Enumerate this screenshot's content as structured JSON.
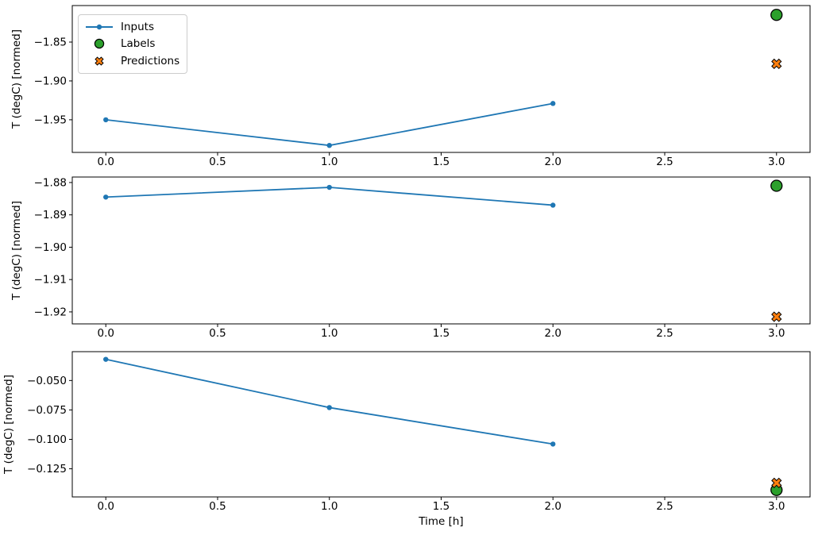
{
  "figure": {
    "background": "#ffffff"
  },
  "colors": {
    "inputs_line": "#1f77b4",
    "labels_marker": "#2ca02c",
    "predictions_marker": "#ff7f0e",
    "marker_edge": "#000000",
    "axis": "#000000",
    "tick_text": "#000000",
    "legend_border": "#cccccc"
  },
  "legend": {
    "position": "upper left",
    "entries": [
      {
        "label": "Inputs",
        "marker": "line-dot-icon",
        "color": "#1f77b4"
      },
      {
        "label": "Labels",
        "marker": "circle-icon",
        "color": "#2ca02c"
      },
      {
        "label": "Predictions",
        "marker": "x-cross-icon",
        "color": "#ff7f0e"
      }
    ]
  },
  "chart_data": {
    "type": "line",
    "title": "",
    "xlabel": "Time [h]",
    "xlim": [
      -0.15,
      3.15
    ],
    "x_ticks": [
      0.0,
      0.5,
      1.0,
      1.5,
      2.0,
      2.5,
      3.0
    ],
    "x_tick_labels": [
      "0.0",
      "0.5",
      "1.0",
      "1.5",
      "2.0",
      "2.5",
      "3.0"
    ],
    "grid": false,
    "subplots": [
      {
        "ylabel": "T (degC) [normed]",
        "ylim": [
          -1.992,
          -1.803
        ],
        "yticks": [
          -1.85,
          -1.9,
          -1.95
        ],
        "ytick_labels": [
          "−1.85",
          "−1.90",
          "−1.95"
        ],
        "series": [
          {
            "name": "Inputs",
            "type": "line+marker",
            "x": [
              0,
              1,
              2
            ],
            "y": [
              -1.95,
              -1.983,
              -1.929
            ]
          },
          {
            "name": "Labels",
            "type": "scatter-circle",
            "x": [
              3
            ],
            "y": [
              -1.815
            ]
          },
          {
            "name": "Predictions",
            "type": "scatter-x",
            "x": [
              3
            ],
            "y": [
              -1.878
            ]
          }
        ]
      },
      {
        "ylabel": "T (degC) [normed]",
        "ylim": [
          -1.9237,
          -1.8783
        ],
        "yticks": [
          -1.88,
          -1.89,
          -1.9,
          -1.91,
          -1.92
        ],
        "ytick_labels": [
          "−1.88",
          "−1.89",
          "−1.90",
          "−1.91",
          "−1.92"
        ],
        "series": [
          {
            "name": "Inputs",
            "type": "line+marker",
            "x": [
              0,
              1,
              2
            ],
            "y": [
              -1.8845,
              -1.8815,
              -1.887
            ]
          },
          {
            "name": "Labels",
            "type": "scatter-circle",
            "x": [
              3
            ],
            "y": [
              -1.881
            ]
          },
          {
            "name": "Predictions",
            "type": "scatter-x",
            "x": [
              3
            ],
            "y": [
              -1.9215
            ]
          }
        ]
      },
      {
        "ylabel": "T (degC) [normed]",
        "ylim": [
          -0.1489,
          -0.0255
        ],
        "yticks": [
          -0.05,
          -0.075,
          -0.1,
          -0.125
        ],
        "ytick_labels": [
          "−0.050",
          "−0.075",
          "−0.100",
          "−0.125"
        ],
        "series": [
          {
            "name": "Inputs",
            "type": "line+marker",
            "x": [
              0,
              1,
              2
            ],
            "y": [
              -0.032,
              -0.073,
              -0.104
            ]
          },
          {
            "name": "Labels",
            "type": "scatter-circle",
            "x": [
              3
            ],
            "y": [
              -0.143
            ]
          },
          {
            "name": "Predictions",
            "type": "scatter-x",
            "x": [
              3
            ],
            "y": [
              -0.137
            ]
          }
        ]
      }
    ]
  }
}
